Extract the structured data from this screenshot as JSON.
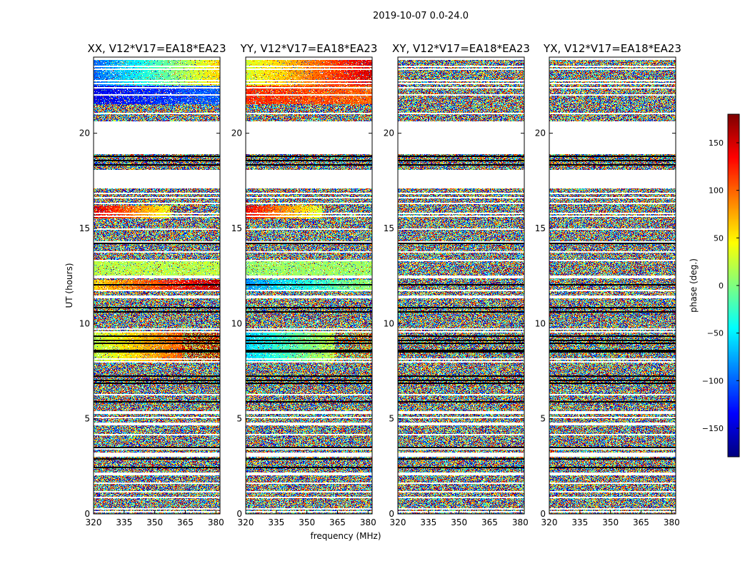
{
  "figure": {
    "title": "2019-10-07 0.0-24.0",
    "xlabel": "frequency (MHz)",
    "ylabel": "UT (hours)"
  },
  "chart_data": {
    "type": "heatmap",
    "x_ticks": [
      320,
      335,
      350,
      365,
      380
    ],
    "xlim": [
      320,
      382
    ],
    "y_ticks": [
      0,
      5,
      10,
      15,
      20
    ],
    "ylim": [
      0,
      24
    ],
    "colorbar": {
      "label": "phase (deg.)",
      "ticks": [
        150,
        100,
        50,
        0,
        -50,
        -100,
        -150
      ],
      "tick_labels": [
        "150",
        "100",
        "50",
        "0",
        "−50",
        "−100",
        "−150"
      ],
      "range": [
        -180,
        180
      ],
      "colormap": "jet"
    },
    "panels": [
      {
        "title": "XX, V12*V17=EA18*EA23",
        "pol": "XX"
      },
      {
        "title": "YY, V12*V17=EA18*EA23",
        "pol": "YY"
      },
      {
        "title": "XY, V12*V17=EA18*EA23",
        "pol": "XY"
      },
      {
        "title": "YX, V12*V17=EA18*EA23",
        "pol": "YX"
      }
    ],
    "flagged_ut_ranges": [
      [
        18.9,
        20.6
      ],
      [
        17.2,
        18.0
      ],
      [
        11.3,
        11.4
      ],
      [
        6.2,
        6.3
      ],
      [
        3.0,
        3.2
      ],
      [
        2.0,
        2.2
      ]
    ]
  }
}
